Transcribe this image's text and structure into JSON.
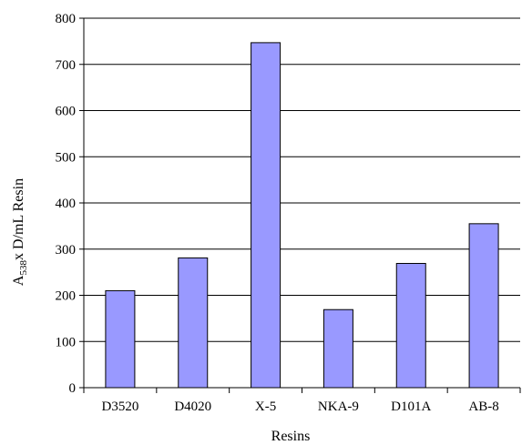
{
  "chart_data": {
    "type": "bar",
    "categories": [
      "D3520",
      "D4020",
      "X-5",
      "NKA-9",
      "D101A",
      "AB-8"
    ],
    "values": [
      210,
      281,
      747,
      169,
      269,
      355
    ],
    "xlabel": "Resins",
    "ylabel_parts": {
      "prefix": "A",
      "subscript": "538",
      "suffix": "x D/mL Resin"
    },
    "ylim": [
      0,
      800
    ],
    "yticks": [
      0,
      100,
      200,
      300,
      400,
      500,
      600,
      700,
      800
    ],
    "grid": true,
    "legend": "none",
    "colors": {
      "bar": "#9999ff",
      "bar_stroke": "#000000",
      "grid": "#000000"
    }
  }
}
